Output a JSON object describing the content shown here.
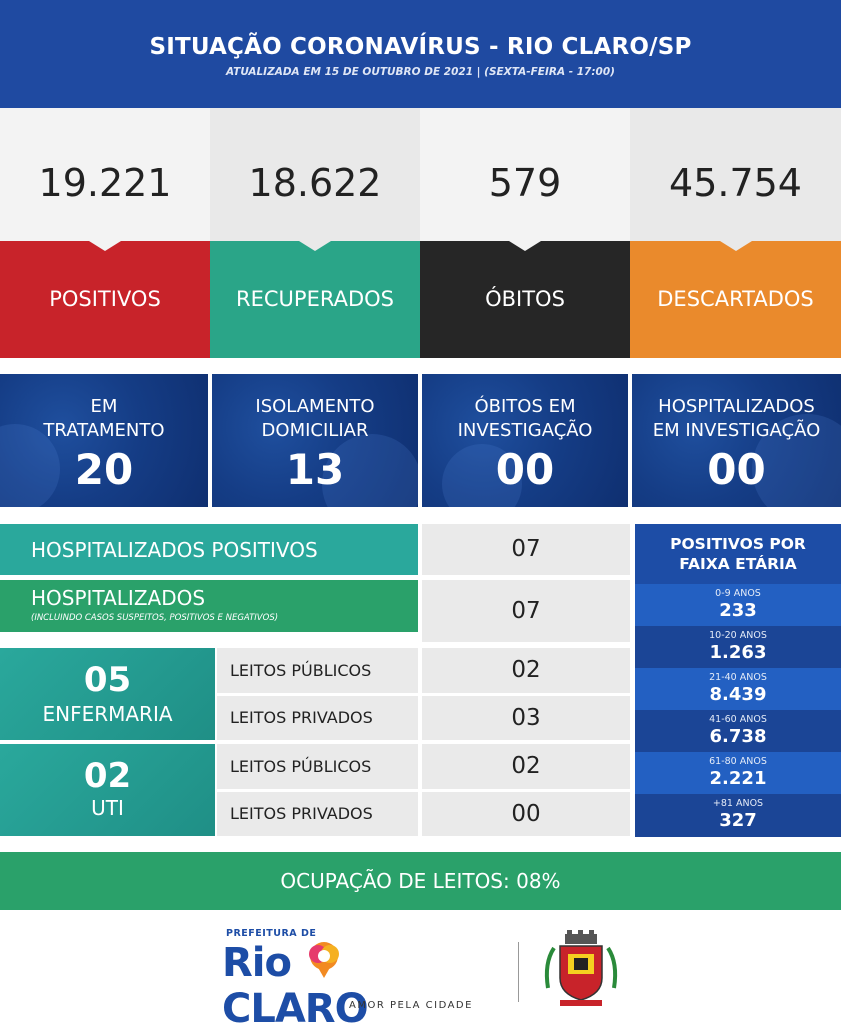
{
  "header": {
    "title": "SITUAÇÃO CORONAVÍRUS - RIO CLARO/SP",
    "subtitle": "ATUALIZADA EM 15 DE OUTUBRO DE 2021 | (SEXTA-FEIRA - 17:00)"
  },
  "stats": [
    {
      "value": "19.221",
      "label": "POSITIVOS",
      "color": "#c8232a"
    },
    {
      "value": "18.622",
      "label": "RECUPERADOS",
      "color": "#2aa588"
    },
    {
      "value": "579",
      "label": "ÓBITOS",
      "color": "#262626"
    },
    {
      "value": "45.754",
      "label": "DESCARTADOS",
      "color": "#ea8a2c"
    }
  ],
  "investigation": [
    {
      "label1": "EM",
      "label2": "TRATAMENTO",
      "value": "20"
    },
    {
      "label1": "ISOLAMENTO",
      "label2": "DOMICILIAR",
      "value": "13"
    },
    {
      "label1": "ÓBITOS EM",
      "label2": "INVESTIGAÇÃO",
      "value": "00"
    },
    {
      "label1": "HOSPITALIZADOS",
      "label2": "EM INVESTIGAÇÃO",
      "value": "00"
    }
  ],
  "hospital": {
    "positivos_label": "HOSPITALIZADOS POSITIVOS",
    "positivos_value": "07",
    "total_label": "HOSPITALIZADOS",
    "total_note": "(INCLUINDO CASOS SUSPEITOS, POSITIVOS E NEGATIVOS)",
    "total_value": "07"
  },
  "wards": {
    "enfermaria": {
      "value": "05",
      "label": "ENFERMARIA",
      "publicos_label": "LEITOS PÚBLICOS",
      "publicos_value": "02",
      "privados_label": "LEITOS PRIVADOS",
      "privados_value": "03"
    },
    "uti": {
      "value": "02",
      "label": "UTI",
      "publicos_label": "LEITOS PÚBLICOS",
      "publicos_value": "02",
      "privados_label": "LEITOS PRIVADOS",
      "privados_value": "00"
    }
  },
  "age": {
    "title1": "POSITIVOS POR",
    "title2": "FAIXA ETÁRIA",
    "groups": [
      {
        "range": "0-9 ANOS",
        "value": "233"
      },
      {
        "range": "10-20 ANOS",
        "value": "1.263"
      },
      {
        "range": "21-40 ANOS",
        "value": "8.439"
      },
      {
        "range": "41-60 ANOS",
        "value": "6.738"
      },
      {
        "range": "61-80 ANOS",
        "value": "2.221"
      },
      {
        "range": "+81 ANOS",
        "value": "327"
      }
    ]
  },
  "occupancy": "OCUPAÇÃO DE LEITOS: 08%",
  "footer": {
    "prefeitura": "PREFEITURA DE",
    "logo_rio": "Rio",
    "logo_claro": "CLARO",
    "tagline": "AMOR PELA CIDADE"
  }
}
